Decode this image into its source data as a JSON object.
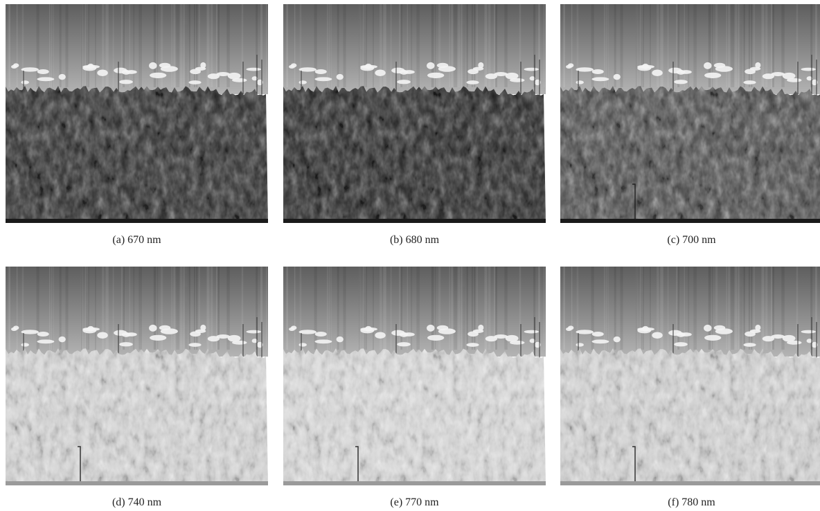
{
  "panels": [
    {
      "caption": "(a) 670 nm"
    },
    {
      "caption": "(b) 680 nm"
    },
    {
      "caption": "(c) 700 nm"
    },
    {
      "caption": "(d) 740 nm"
    },
    {
      "caption": "(e) 770 nm"
    },
    {
      "caption": "(f) 780 nm"
    }
  ]
}
